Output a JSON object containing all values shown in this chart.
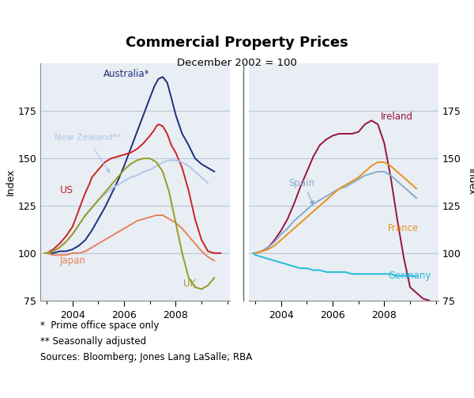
{
  "title": "Commercial Property Prices",
  "subtitle": "December 2002 = 100",
  "ylabel_left": "Index",
  "ylabel_right": "Index",
  "ylim": [
    75,
    200
  ],
  "yticks": [
    75,
    100,
    125,
    150,
    175
  ],
  "footnotes": [
    "*  Prime office space only",
    "** Seasonally adjusted",
    "Sources: Bloomberg; Jones Lang LaSalle; RBA"
  ],
  "left_panel": {
    "xticks": [
      2004,
      2006,
      2008
    ],
    "xlim": [
      2002.75,
      2010.1
    ],
    "series": {
      "Australia": {
        "color": "#1f2f7a",
        "label": "Australia*",
        "data_x": [
          2002.92,
          2003.0,
          2003.25,
          2003.5,
          2003.75,
          2004.0,
          2004.25,
          2004.5,
          2004.75,
          2005.0,
          2005.25,
          2005.5,
          2005.75,
          2006.0,
          2006.25,
          2006.5,
          2006.75,
          2007.0,
          2007.17,
          2007.33,
          2007.5,
          2007.67,
          2007.75,
          2007.83,
          2008.0,
          2008.25,
          2008.5,
          2008.75,
          2009.0,
          2009.25,
          2009.5
        ],
        "data_y": [
          100,
          100,
          100,
          101,
          101,
          102,
          104,
          107,
          112,
          118,
          124,
          131,
          138,
          146,
          155,
          164,
          173,
          182,
          188,
          192,
          193,
          190,
          186,
          182,
          173,
          163,
          157,
          150,
          147,
          145,
          143
        ]
      },
      "US": {
        "color": "#cc2222",
        "label": "US",
        "data_x": [
          2002.92,
          2003.0,
          2003.25,
          2003.5,
          2003.75,
          2004.0,
          2004.17,
          2004.33,
          2004.5,
          2004.67,
          2004.75,
          2005.0,
          2005.25,
          2005.5,
          2005.75,
          2006.0,
          2006.25,
          2006.5,
          2006.75,
          2007.0,
          2007.17,
          2007.25,
          2007.33,
          2007.5,
          2007.67,
          2007.75,
          2007.83,
          2008.0,
          2008.25,
          2008.5,
          2008.75,
          2009.0,
          2009.25,
          2009.5,
          2009.75
        ],
        "data_y": [
          100,
          100,
          102,
          105,
          109,
          114,
          120,
          126,
          132,
          137,
          140,
          144,
          148,
          150,
          151,
          152,
          153,
          155,
          158,
          162,
          165,
          167,
          168,
          167,
          163,
          160,
          157,
          153,
          145,
          133,
          118,
          107,
          101,
          100,
          100
        ]
      },
      "NewZealand": {
        "color": "#b0c8e8",
        "label": "New Zealand**",
        "data_x": [
          2002.92,
          2003.0,
          2003.25,
          2003.5,
          2003.75,
          2004.0,
          2004.25,
          2004.5,
          2004.75,
          2005.0,
          2005.25,
          2005.5,
          2005.75,
          2006.0,
          2006.25,
          2006.5,
          2006.75,
          2007.0,
          2007.25,
          2007.5,
          2007.75,
          2008.0,
          2008.25,
          2008.5,
          2008.75,
          2009.0,
          2009.25
        ],
        "data_y": [
          100,
          100,
          101,
          103,
          106,
          110,
          115,
          120,
          124,
          128,
          131,
          134,
          136,
          138,
          140,
          141,
          143,
          144,
          146,
          148,
          149,
          149,
          148,
          146,
          143,
          140,
          137
        ]
      },
      "Japan": {
        "color": "#e8825a",
        "label": "Japan",
        "data_x": [
          2002.92,
          2003.0,
          2003.25,
          2003.5,
          2003.75,
          2004.0,
          2004.25,
          2004.5,
          2004.75,
          2005.0,
          2005.25,
          2005.5,
          2005.75,
          2006.0,
          2006.25,
          2006.5,
          2006.75,
          2007.0,
          2007.25,
          2007.5,
          2007.75,
          2008.0,
          2008.25,
          2008.5,
          2008.75,
          2009.0,
          2009.25,
          2009.5
        ],
        "data_y": [
          100,
          100,
          99,
          99,
          99,
          100,
          100,
          101,
          103,
          105,
          107,
          109,
          111,
          113,
          115,
          117,
          118,
          119,
          120,
          120,
          118,
          116,
          113,
          109,
          105,
          101,
          98,
          96
        ]
      },
      "UK": {
        "color": "#9a9a20",
        "label": "UK",
        "data_x": [
          2002.92,
          2003.0,
          2003.25,
          2003.5,
          2003.75,
          2004.0,
          2004.25,
          2004.5,
          2004.75,
          2005.0,
          2005.25,
          2005.5,
          2005.75,
          2006.0,
          2006.25,
          2006.5,
          2006.75,
          2007.0,
          2007.25,
          2007.5,
          2007.75,
          2008.0,
          2008.25,
          2008.5,
          2008.75,
          2009.0,
          2009.25,
          2009.5
        ],
        "data_y": [
          100,
          100,
          101,
          103,
          106,
          110,
          115,
          120,
          124,
          128,
          132,
          136,
          140,
          144,
          147,
          149,
          150,
          150,
          148,
          143,
          132,
          116,
          100,
          87,
          82,
          81,
          83,
          87
        ]
      }
    }
  },
  "right_panel": {
    "xticks": [
      2004,
      2006,
      2008
    ],
    "xlim": [
      2002.75,
      2010.1
    ],
    "series": {
      "Ireland": {
        "color": "#991144",
        "label": "Ireland",
        "data_x": [
          2002.92,
          2003.0,
          2003.25,
          2003.5,
          2003.75,
          2004.0,
          2004.25,
          2004.5,
          2004.75,
          2005.0,
          2005.25,
          2005.5,
          2005.75,
          2006.0,
          2006.25,
          2006.5,
          2006.75,
          2007.0,
          2007.25,
          2007.5,
          2007.75,
          2008.0,
          2008.25,
          2008.5,
          2008.75,
          2009.0,
          2009.25,
          2009.5,
          2009.75
        ],
        "data_y": [
          100,
          100,
          101,
          103,
          107,
          112,
          118,
          126,
          135,
          143,
          151,
          157,
          160,
          162,
          163,
          163,
          163,
          164,
          168,
          170,
          168,
          158,
          140,
          118,
          98,
          82,
          79,
          76,
          75
        ]
      },
      "Spain": {
        "color": "#88aacc",
        "label": "Spain",
        "data_x": [
          2002.92,
          2003.0,
          2003.25,
          2003.5,
          2003.75,
          2004.0,
          2004.25,
          2004.5,
          2004.75,
          2005.0,
          2005.25,
          2005.5,
          2005.75,
          2006.0,
          2006.25,
          2006.5,
          2006.75,
          2007.0,
          2007.25,
          2007.5,
          2007.75,
          2008.0,
          2008.25,
          2008.5,
          2008.75,
          2009.0,
          2009.25
        ],
        "data_y": [
          100,
          100,
          101,
          103,
          106,
          110,
          113,
          117,
          120,
          123,
          126,
          128,
          130,
          132,
          134,
          135,
          137,
          139,
          141,
          142,
          143,
          143,
          141,
          138,
          135,
          132,
          129
        ]
      },
      "France": {
        "color": "#e8921e",
        "label": "France",
        "data_x": [
          2002.92,
          2003.0,
          2003.25,
          2003.5,
          2003.75,
          2004.0,
          2004.25,
          2004.5,
          2004.75,
          2005.0,
          2005.25,
          2005.5,
          2005.75,
          2006.0,
          2006.25,
          2006.5,
          2006.75,
          2007.0,
          2007.25,
          2007.5,
          2007.75,
          2008.0,
          2008.25,
          2008.5,
          2008.75,
          2009.0,
          2009.25
        ],
        "data_y": [
          100,
          100,
          101,
          102,
          104,
          107,
          110,
          113,
          116,
          119,
          122,
          125,
          128,
          131,
          134,
          136,
          138,
          140,
          143,
          146,
          148,
          148,
          146,
          143,
          140,
          137,
          134
        ]
      },
      "Germany": {
        "color": "#22bbdd",
        "label": "Germany",
        "data_x": [
          2002.92,
          2003.0,
          2003.25,
          2003.5,
          2003.75,
          2004.0,
          2004.25,
          2004.5,
          2004.75,
          2005.0,
          2005.25,
          2005.5,
          2005.75,
          2006.0,
          2006.25,
          2006.5,
          2006.75,
          2007.0,
          2007.25,
          2007.5,
          2007.75,
          2008.0,
          2008.25,
          2008.5,
          2008.75,
          2009.0,
          2009.25
        ],
        "data_y": [
          100,
          99,
          98,
          97,
          96,
          95,
          94,
          93,
          92,
          92,
          91,
          91,
          90,
          90,
          90,
          90,
          89,
          89,
          89,
          89,
          89,
          89,
          89,
          88,
          88,
          88,
          88
        ]
      }
    }
  },
  "panel_bg": "#e8eef4",
  "grid_color": "#b8c8d8",
  "divider_color": "#666666"
}
